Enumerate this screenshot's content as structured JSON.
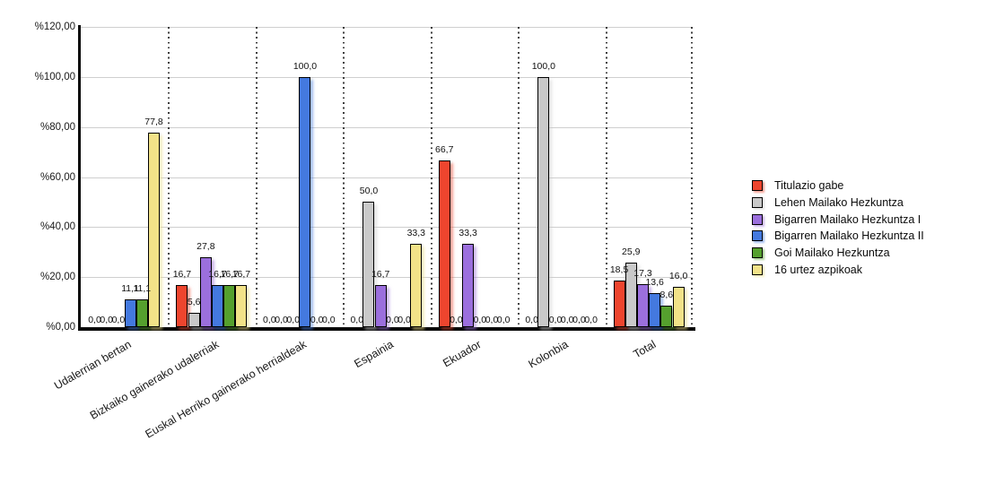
{
  "chart_data": {
    "type": "bar",
    "title": "",
    "categories": [
      "Udalerrian bertan",
      "Bizkaiko gainerako udalerriak",
      "Euskal Herriko gainerako herrialdeak",
      "Espainia",
      "Ekuador",
      "Kolonbia",
      "Total"
    ],
    "series": [
      {
        "name": "Titulazio gabe",
        "color": "#EE452E",
        "values": [
          0.0,
          16.7,
          0.0,
          0.0,
          66.7,
          0.0,
          18.5
        ],
        "labels": [
          "0,0",
          "16,7",
          "0,0",
          "0,0",
          "66,7",
          "0,0",
          "18,5"
        ]
      },
      {
        "name": "Lehen Mailako Hezkuntza",
        "color": "#C9C9C9",
        "values": [
          0.0,
          5.6,
          0.0,
          50.0,
          0.0,
          100.0,
          25.9
        ],
        "labels": [
          "0,0",
          "5,6",
          "0,0",
          "50,0",
          "0,0",
          "100,0",
          "25,9"
        ]
      },
      {
        "name": "Bigarren Mailako Hezkuntza I",
        "color": "#9B6FDD",
        "values": [
          0.0,
          27.8,
          0.0,
          16.7,
          33.3,
          0.0,
          17.3
        ],
        "labels": [
          "0,0",
          "27,8",
          "0,0",
          "16,7",
          "33,3",
          "0,0",
          "17,3"
        ]
      },
      {
        "name": "Bigarren Mailako Hezkuntza II",
        "color": "#4479DF",
        "values": [
          11.1,
          16.7,
          100.0,
          0.0,
          0.0,
          0.0,
          13.6
        ],
        "labels": [
          "11,1",
          "16,7",
          "100,0",
          "0,0",
          "0,0",
          "0,0",
          "13,6"
        ]
      },
      {
        "name": "Goi Mailako Hezkuntza",
        "color": "#55A02E",
        "values": [
          11.1,
          16.7,
          0.0,
          0.0,
          0.0,
          0.0,
          8.6
        ],
        "labels": [
          "11,1",
          "16,7",
          "0,0",
          "0,0",
          "0,0",
          "0,0",
          "8,6"
        ]
      },
      {
        "name": "16 urtez azpikoak",
        "color": "#F2E288",
        "values": [
          77.8,
          16.7,
          0.0,
          33.3,
          0.0,
          0.0,
          16.0
        ],
        "labels": [
          "77,8",
          "16,7",
          "0,0",
          "33,3",
          "0,0",
          "0,0",
          "16,0"
        ]
      }
    ],
    "y_axis": {
      "min": 0,
      "max": 120,
      "step": 20,
      "ticks": [
        "%120,00",
        "%100,00",
        "%80,00",
        "%60,00",
        "%40,00",
        "%20,00",
        "%0,00"
      ]
    },
    "value_labels": {
      "visible": true,
      "decimal_separator": ","
    },
    "legend": {
      "position": "right"
    },
    "grid": {
      "horizontal": true,
      "vertical_group_separators": "dotted"
    },
    "style": {
      "grid_color": "#CFCFCF",
      "axis_color": "#0A0A0A",
      "background": "#FFFFFF",
      "text_color": "#111111"
    }
  }
}
